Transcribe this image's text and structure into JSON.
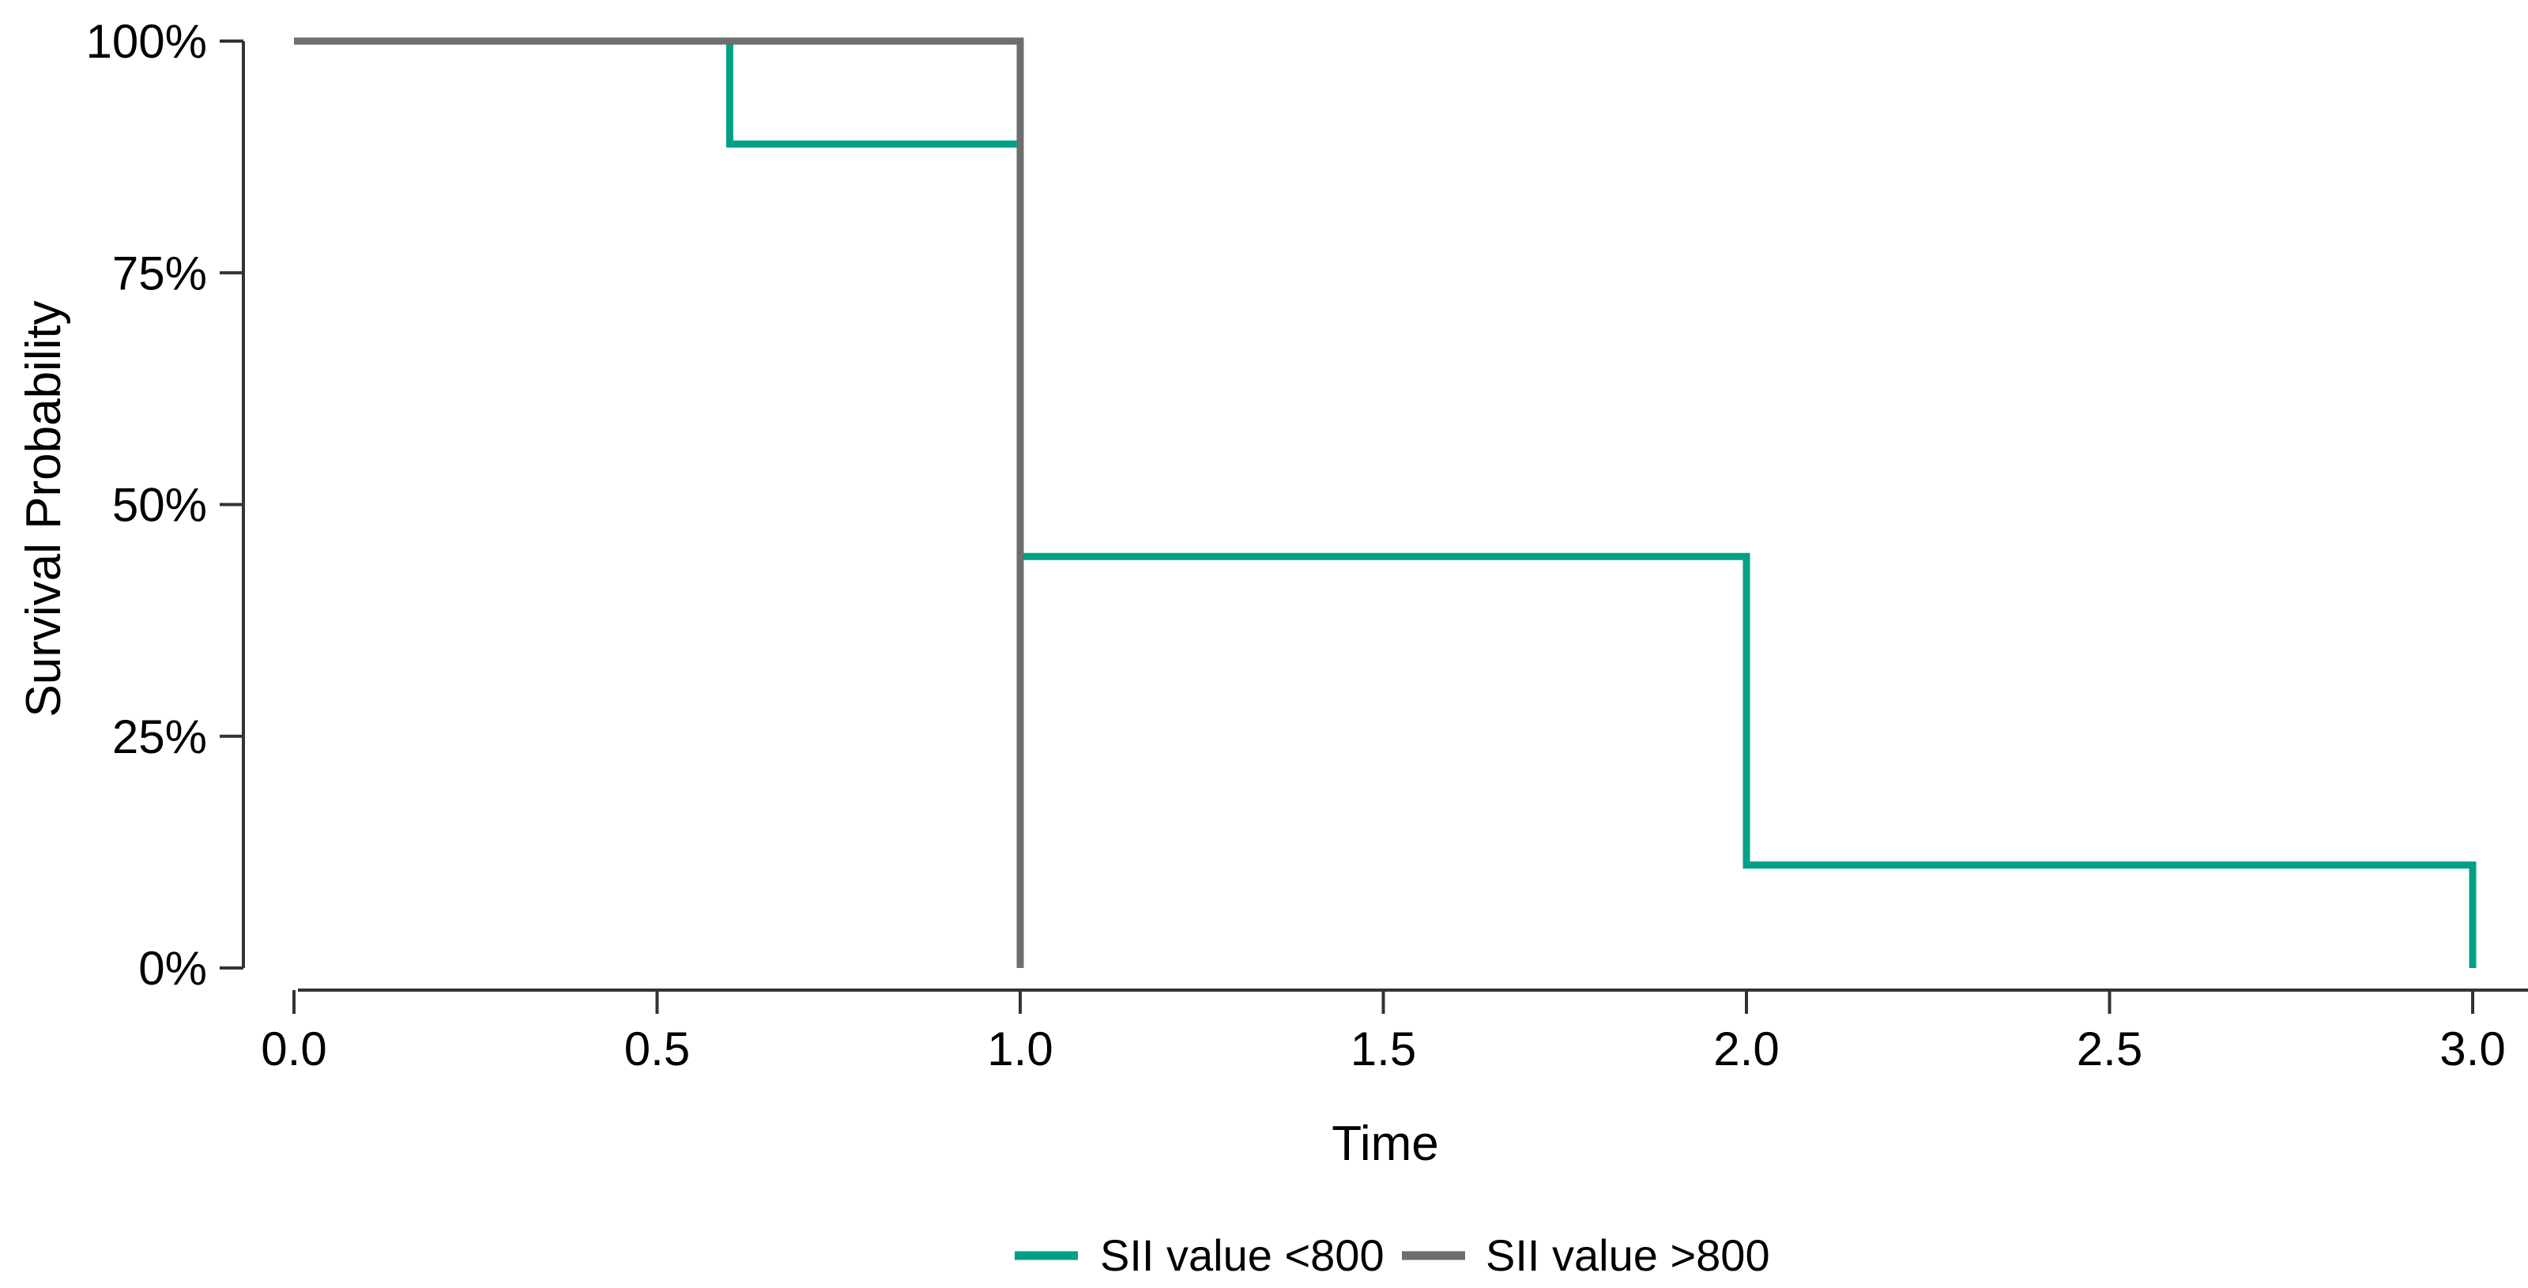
{
  "chart_data": {
    "type": "line",
    "subtype": "kaplan_meier_step",
    "title": "",
    "xlabel": "Time",
    "ylabel": "Survival Probability",
    "xlim": [
      0,
      3
    ],
    "ylim": [
      0,
      1
    ],
    "grid": false,
    "legend_position": "bottom-center",
    "background_color": "#ffffff",
    "axis_color": "#333333",
    "text_color": "#000000",
    "x_tick_values": [
      0,
      0.5,
      1,
      1.5,
      2,
      2.5,
      3
    ],
    "x_tick_labels": [
      "0.0",
      "0.5",
      "1.0",
      "1.5",
      "2.0",
      "2.5",
      "3.0"
    ],
    "y_tick_values": [
      1,
      0.75,
      0.5,
      0.25,
      0
    ],
    "y_tick_labels": [
      "100%",
      "75%",
      "50%",
      "25%",
      "0%"
    ],
    "series": [
      {
        "id": "sii-value-lt-800",
        "name": "SII value <800",
        "color": "#00A087",
        "times": [
          0,
          0.6,
          1,
          2,
          3
        ],
        "survival": [
          1,
          0.889,
          0.444,
          0.111,
          0
        ]
      },
      {
        "id": "sii-value-gt-800",
        "name": "SII value >800",
        "color": "#6E6E6E",
        "times": [
          0,
          1
        ],
        "survival": [
          1,
          0
        ]
      }
    ]
  },
  "legend": {
    "items": [
      {
        "label": "SII value <800",
        "color": "#00A087"
      },
      {
        "label": "SII value >800",
        "color": "#6E6E6E"
      }
    ]
  }
}
